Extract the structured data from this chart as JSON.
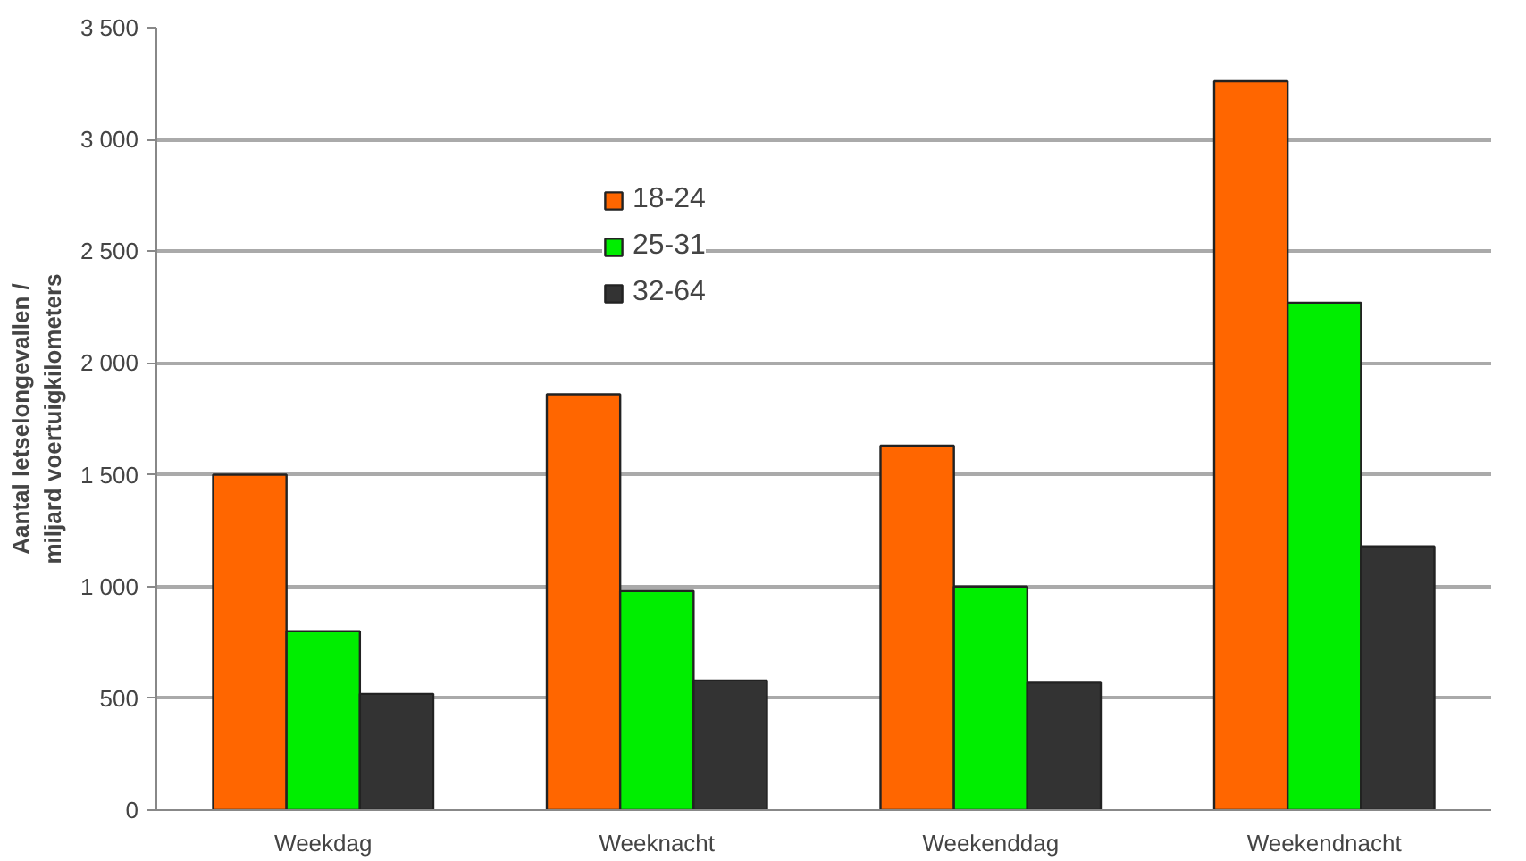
{
  "chart_data": {
    "type": "bar",
    "ylabel": "Aantal letselongevallen /\nmiljard voertuigkilometers",
    "categories": [
      "Weekdag",
      "Weeknacht",
      "Weekenddag",
      "Weekendnacht"
    ],
    "series": [
      {
        "name": "18-24",
        "color": "#ff6600",
        "values": [
          1500,
          1860,
          1630,
          3260
        ]
      },
      {
        "name": "25-31",
        "color": "#00ee00",
        "values": [
          800,
          980,
          1000,
          2270
        ]
      },
      {
        "name": "32-64",
        "color": "#333333",
        "values": [
          520,
          580,
          570,
          1180
        ]
      }
    ],
    "ylim": [
      0,
      3500
    ],
    "yticks": [
      0,
      500,
      {
        "value": 1000,
        "label": "1 000"
      },
      {
        "value": 1500,
        "label": "1 500"
      },
      {
        "value": 2000,
        "label": "2 000"
      },
      {
        "value": 2500,
        "label": "2 500"
      },
      {
        "value": 3000,
        "label": "3 000"
      },
      {
        "value": 3500,
        "label": "3 500"
      }
    ],
    "grid": "y",
    "legend": "top"
  }
}
